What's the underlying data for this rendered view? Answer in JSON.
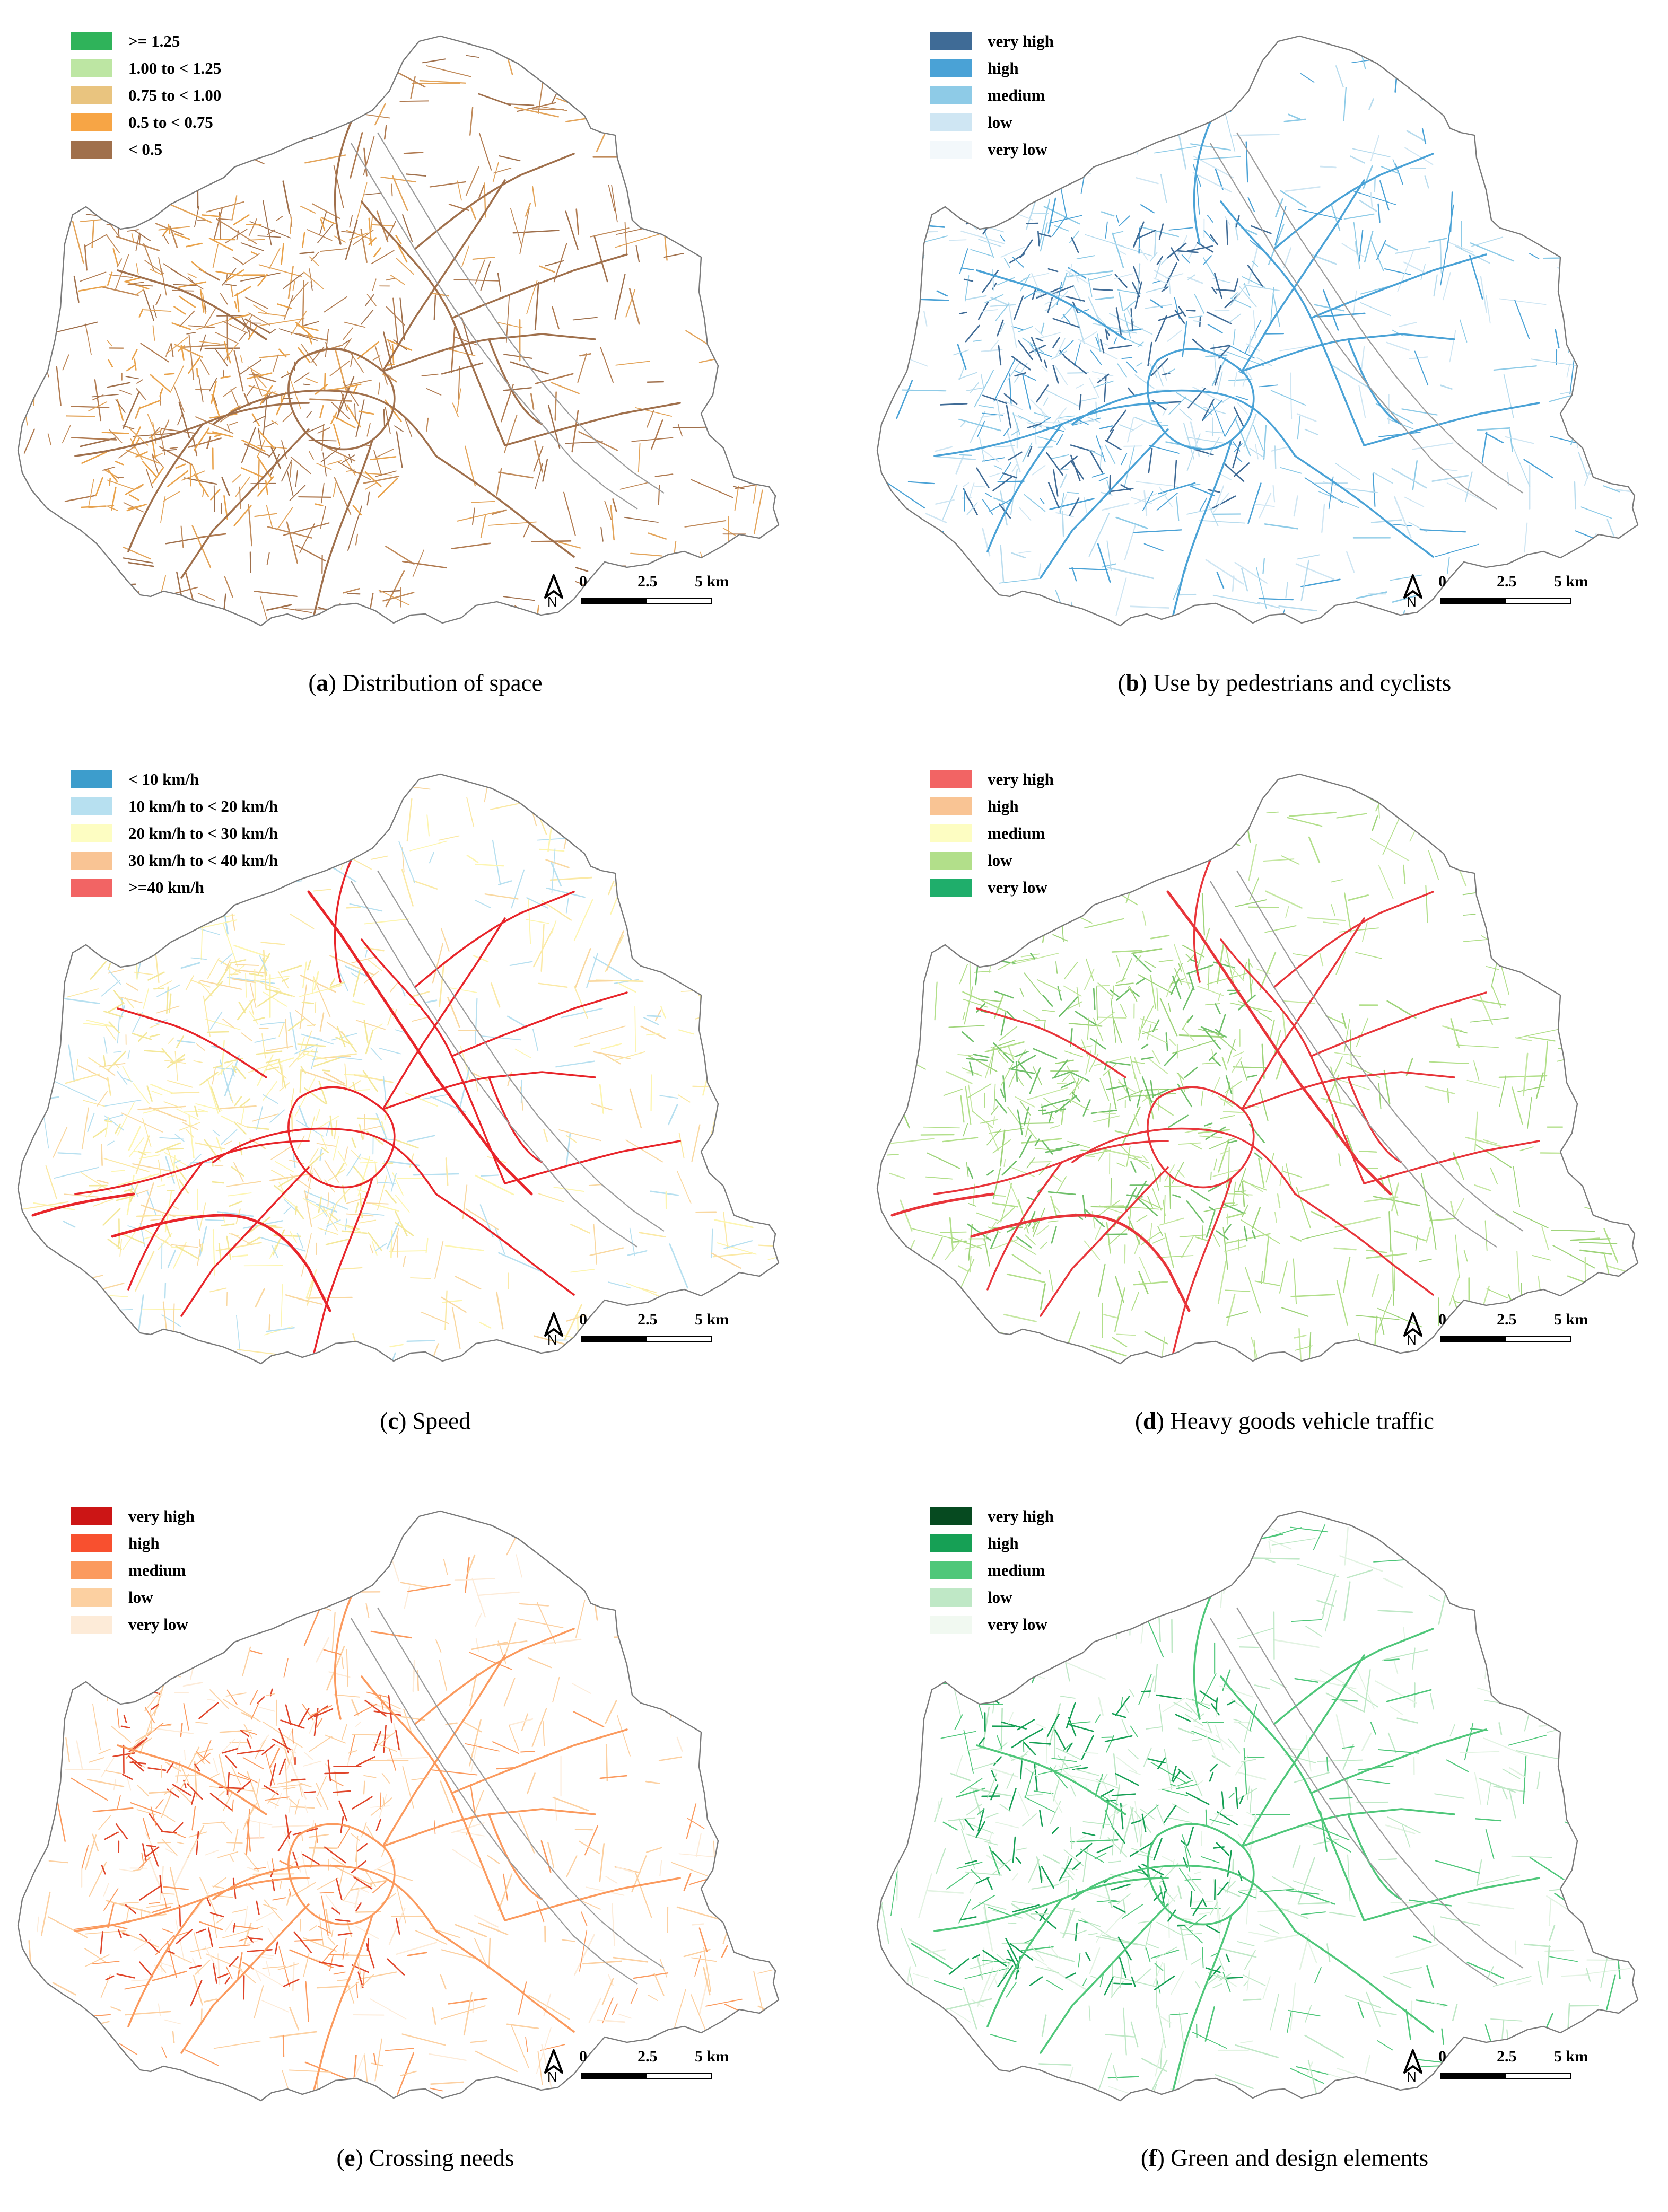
{
  "figure": {
    "panels": [
      {
        "id": "a",
        "letter": "a",
        "caption": "Distribution of space",
        "legend": [
          {
            "label": ">= 1.25",
            "color": "#2fb35a"
          },
          {
            "label": "1.00 to < 1.25",
            "color": "#bde6a3"
          },
          {
            "label": "0.75 to < 1.00",
            "color": "#e9c47f"
          },
          {
            "label": "0.5 to < 0.75",
            "color": "#f7a545"
          },
          {
            "label": "< 0.5",
            "color": "#a0704c"
          }
        ],
        "road_palette": [
          "#a0704c",
          "#c08a5a",
          "#e3a45a",
          "#b07a50"
        ],
        "arterial_color": "#a0704c",
        "center_tint": "#e9a24a"
      },
      {
        "id": "b",
        "letter": "b",
        "caption": "Use by pedestrians and cyclists",
        "legend": [
          {
            "label": "very high",
            "color": "#3f6b96"
          },
          {
            "label": "high",
            "color": "#4aa2d6"
          },
          {
            "label": "medium",
            "color": "#8ecbe7"
          },
          {
            "label": "low",
            "color": "#cfe6f3"
          },
          {
            "label": "very low",
            "color": "#f3f8fb"
          }
        ],
        "road_palette": [
          "#cfe6f3",
          "#8ecbe7",
          "#b8dcee",
          "#4aa2d6"
        ],
        "arterial_color": "#4aa2d6",
        "center_tint": "#3f6b96"
      },
      {
        "id": "c",
        "letter": "c",
        "caption": "Speed",
        "legend": [
          {
            "label": "< 10 km/h",
            "color": "#3d9dcc"
          },
          {
            "label": "10 km/h to < 20 km/h",
            "color": "#b7e0f0"
          },
          {
            "label": "20 km/h to < 30 km/h",
            "color": "#fdfdc2"
          },
          {
            "label": "30 km/h to < 40 km/h",
            "color": "#f9c494"
          },
          {
            "label": ">=40 km/h",
            "color": "#f26464"
          }
        ],
        "road_palette": [
          "#fdf5b0",
          "#f9d8a0",
          "#b7e0f0",
          "#fbe9a5"
        ],
        "arterial_color": "#e8252a",
        "center_tint": "#f4e89a"
      },
      {
        "id": "d",
        "letter": "d",
        "caption": "Heavy goods vehicle traffic",
        "legend": [
          {
            "label": "very high",
            "color": "#f26464"
          },
          {
            "label": "high",
            "color": "#f9c494"
          },
          {
            "label": "medium",
            "color": "#fdfdc2"
          },
          {
            "label": "low",
            "color": "#b2df8a"
          },
          {
            "label": "very low",
            "color": "#1fae6b"
          }
        ],
        "road_palette": [
          "#b2df8a",
          "#9fd47a",
          "#c5e7a2",
          "#b2df8a"
        ],
        "arterial_color": "#e8353a",
        "center_tint": "#6fbf6a"
      },
      {
        "id": "e",
        "letter": "e",
        "caption": "Crossing needs",
        "legend": [
          {
            "label": "very high",
            "color": "#cc1515"
          },
          {
            "label": "high",
            "color": "#f8502f"
          },
          {
            "label": "medium",
            "color": "#fb9a5e"
          },
          {
            "label": "low",
            "color": "#fcd0a1"
          },
          {
            "label": "very low",
            "color": "#fdebd8"
          }
        ],
        "road_palette": [
          "#fcd0a1",
          "#fdebd8",
          "#fb9a5e",
          "#fcd0a1"
        ],
        "arterial_color": "#fb9a5e",
        "center_tint": "#e0452a"
      },
      {
        "id": "f",
        "letter": "f",
        "caption": "Green and design elements",
        "legend": [
          {
            "label": "very high",
            "color": "#064a20"
          },
          {
            "label": "high",
            "color": "#16a055"
          },
          {
            "label": "medium",
            "color": "#4fc77a"
          },
          {
            "label": "low",
            "color": "#bfe8c6"
          },
          {
            "label": "very low",
            "color": "#f1f9f1"
          }
        ],
        "road_palette": [
          "#bfe8c6",
          "#e2f3e2",
          "#4fc77a",
          "#bfe8c6"
        ],
        "arterial_color": "#4fc77a",
        "center_tint": "#16a055"
      }
    ],
    "scale_bar": {
      "ticks": [
        "0",
        "2.5",
        "5 km"
      ]
    },
    "north_arrow": {
      "label": "N"
    },
    "boundary_color": "#7a7a7a",
    "river_color": "#9b9b9b"
  }
}
